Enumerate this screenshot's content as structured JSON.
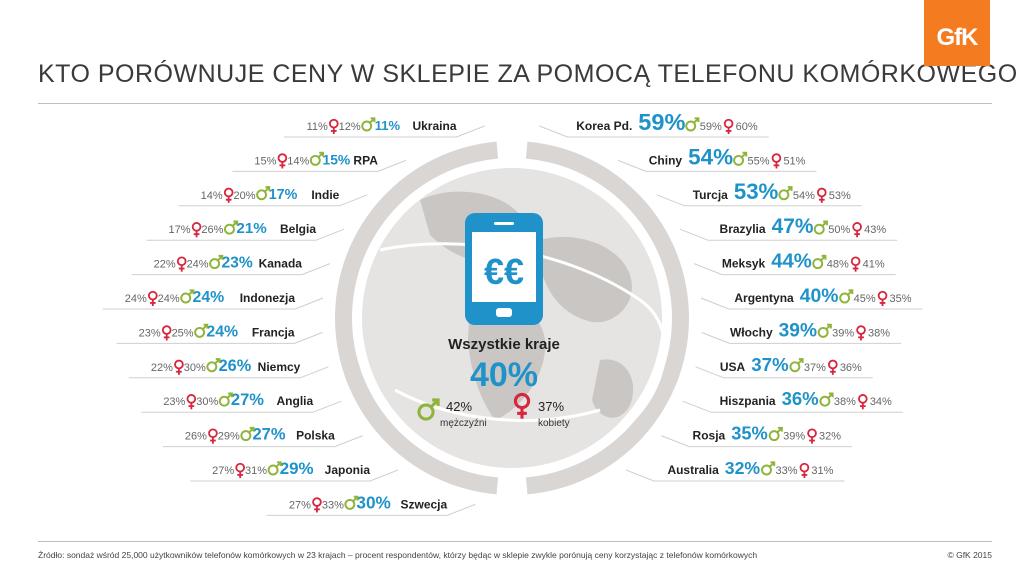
{
  "header": {
    "title": "KTO PORÓWNUJE CENY W SKLEPIE ZA POMOCĄ TELEFONU KOMÓRKOWEGO",
    "logo": "GfK"
  },
  "center": {
    "label": "Wszystkie kraje",
    "total": "40%",
    "men_value": "42%",
    "men_label": "mężczyźni",
    "women_value": "37%",
    "women_label": "kobiety",
    "phone_symbol": "€€"
  },
  "colors": {
    "total": "#1f93c9",
    "male": "#8fb43a",
    "female": "#d7263d",
    "text": "#333333",
    "muted": "#666666",
    "ring": "#d9d6d4",
    "logo": "#f47b20"
  },
  "icons": [
    "male-icon",
    "female-icon",
    "smartphone-icon",
    "globe-icon"
  ],
  "footer": {
    "source": "Źródło: sondaż wśród 25,000 użytkowników telefonów komórkowych w 23 krajach – procent respondentów, którzy będąc w sklepie zwykle porónują ceny korzystając z telefonów komórkowych",
    "copyright": "© GfK 2015"
  },
  "chart_data": {
    "type": "table",
    "title": "KTO PORÓWNUJE CENY W SKLEPIE ZA POMOCĄ TELEFONU KOMÓRKOWEGO",
    "columns": [
      "country",
      "total",
      "male",
      "female"
    ],
    "overall": {
      "country": "Wszystkie kraje",
      "total": 40,
      "male": 42,
      "female": 37
    },
    "left": [
      {
        "country": "Ukraina",
        "total": 11,
        "male": 12,
        "female": 11
      },
      {
        "country": "RPA",
        "total": 15,
        "male": 14,
        "female": 15
      },
      {
        "country": "Indie",
        "total": 17,
        "male": 20,
        "female": 14
      },
      {
        "country": "Belgia",
        "total": 21,
        "male": 26,
        "female": 17
      },
      {
        "country": "Kanada",
        "total": 23,
        "male": 24,
        "female": 22
      },
      {
        "country": "Indonezja",
        "total": 24,
        "male": 24,
        "female": 24
      },
      {
        "country": "Francja",
        "total": 24,
        "male": 25,
        "female": 23
      },
      {
        "country": "Niemcy",
        "total": 26,
        "male": 30,
        "female": 22
      },
      {
        "country": "Anglia",
        "total": 27,
        "male": 30,
        "female": 23
      },
      {
        "country": "Polska",
        "total": 27,
        "male": 29,
        "female": 26
      },
      {
        "country": "Japonia",
        "total": 29,
        "male": 31,
        "female": 27
      },
      {
        "country": "Szwecja",
        "total": 30,
        "male": 33,
        "female": 27
      }
    ],
    "right": [
      {
        "country": "Korea Pd.",
        "total": 59,
        "male": 59,
        "female": 60
      },
      {
        "country": "Chiny",
        "total": 54,
        "male": 55,
        "female": 51
      },
      {
        "country": "Turcja",
        "total": 53,
        "male": 54,
        "female": 53
      },
      {
        "country": "Brazylia",
        "total": 47,
        "male": 50,
        "female": 43
      },
      {
        "country": "Meksyk",
        "total": 44,
        "male": 48,
        "female": 41
      },
      {
        "country": "Argentyna",
        "total": 40,
        "male": 45,
        "female": 35
      },
      {
        "country": "Włochy",
        "total": 39,
        "male": 39,
        "female": 38
      },
      {
        "country": "USA",
        "total": 37,
        "male": 37,
        "female": 36
      },
      {
        "country": "Hiszpania",
        "total": 36,
        "male": 38,
        "female": 34
      },
      {
        "country": "Rosja",
        "total": 35,
        "male": 39,
        "female": 32
      },
      {
        "country": "Australia",
        "total": 32,
        "male": 33,
        "female": 31
      }
    ]
  }
}
